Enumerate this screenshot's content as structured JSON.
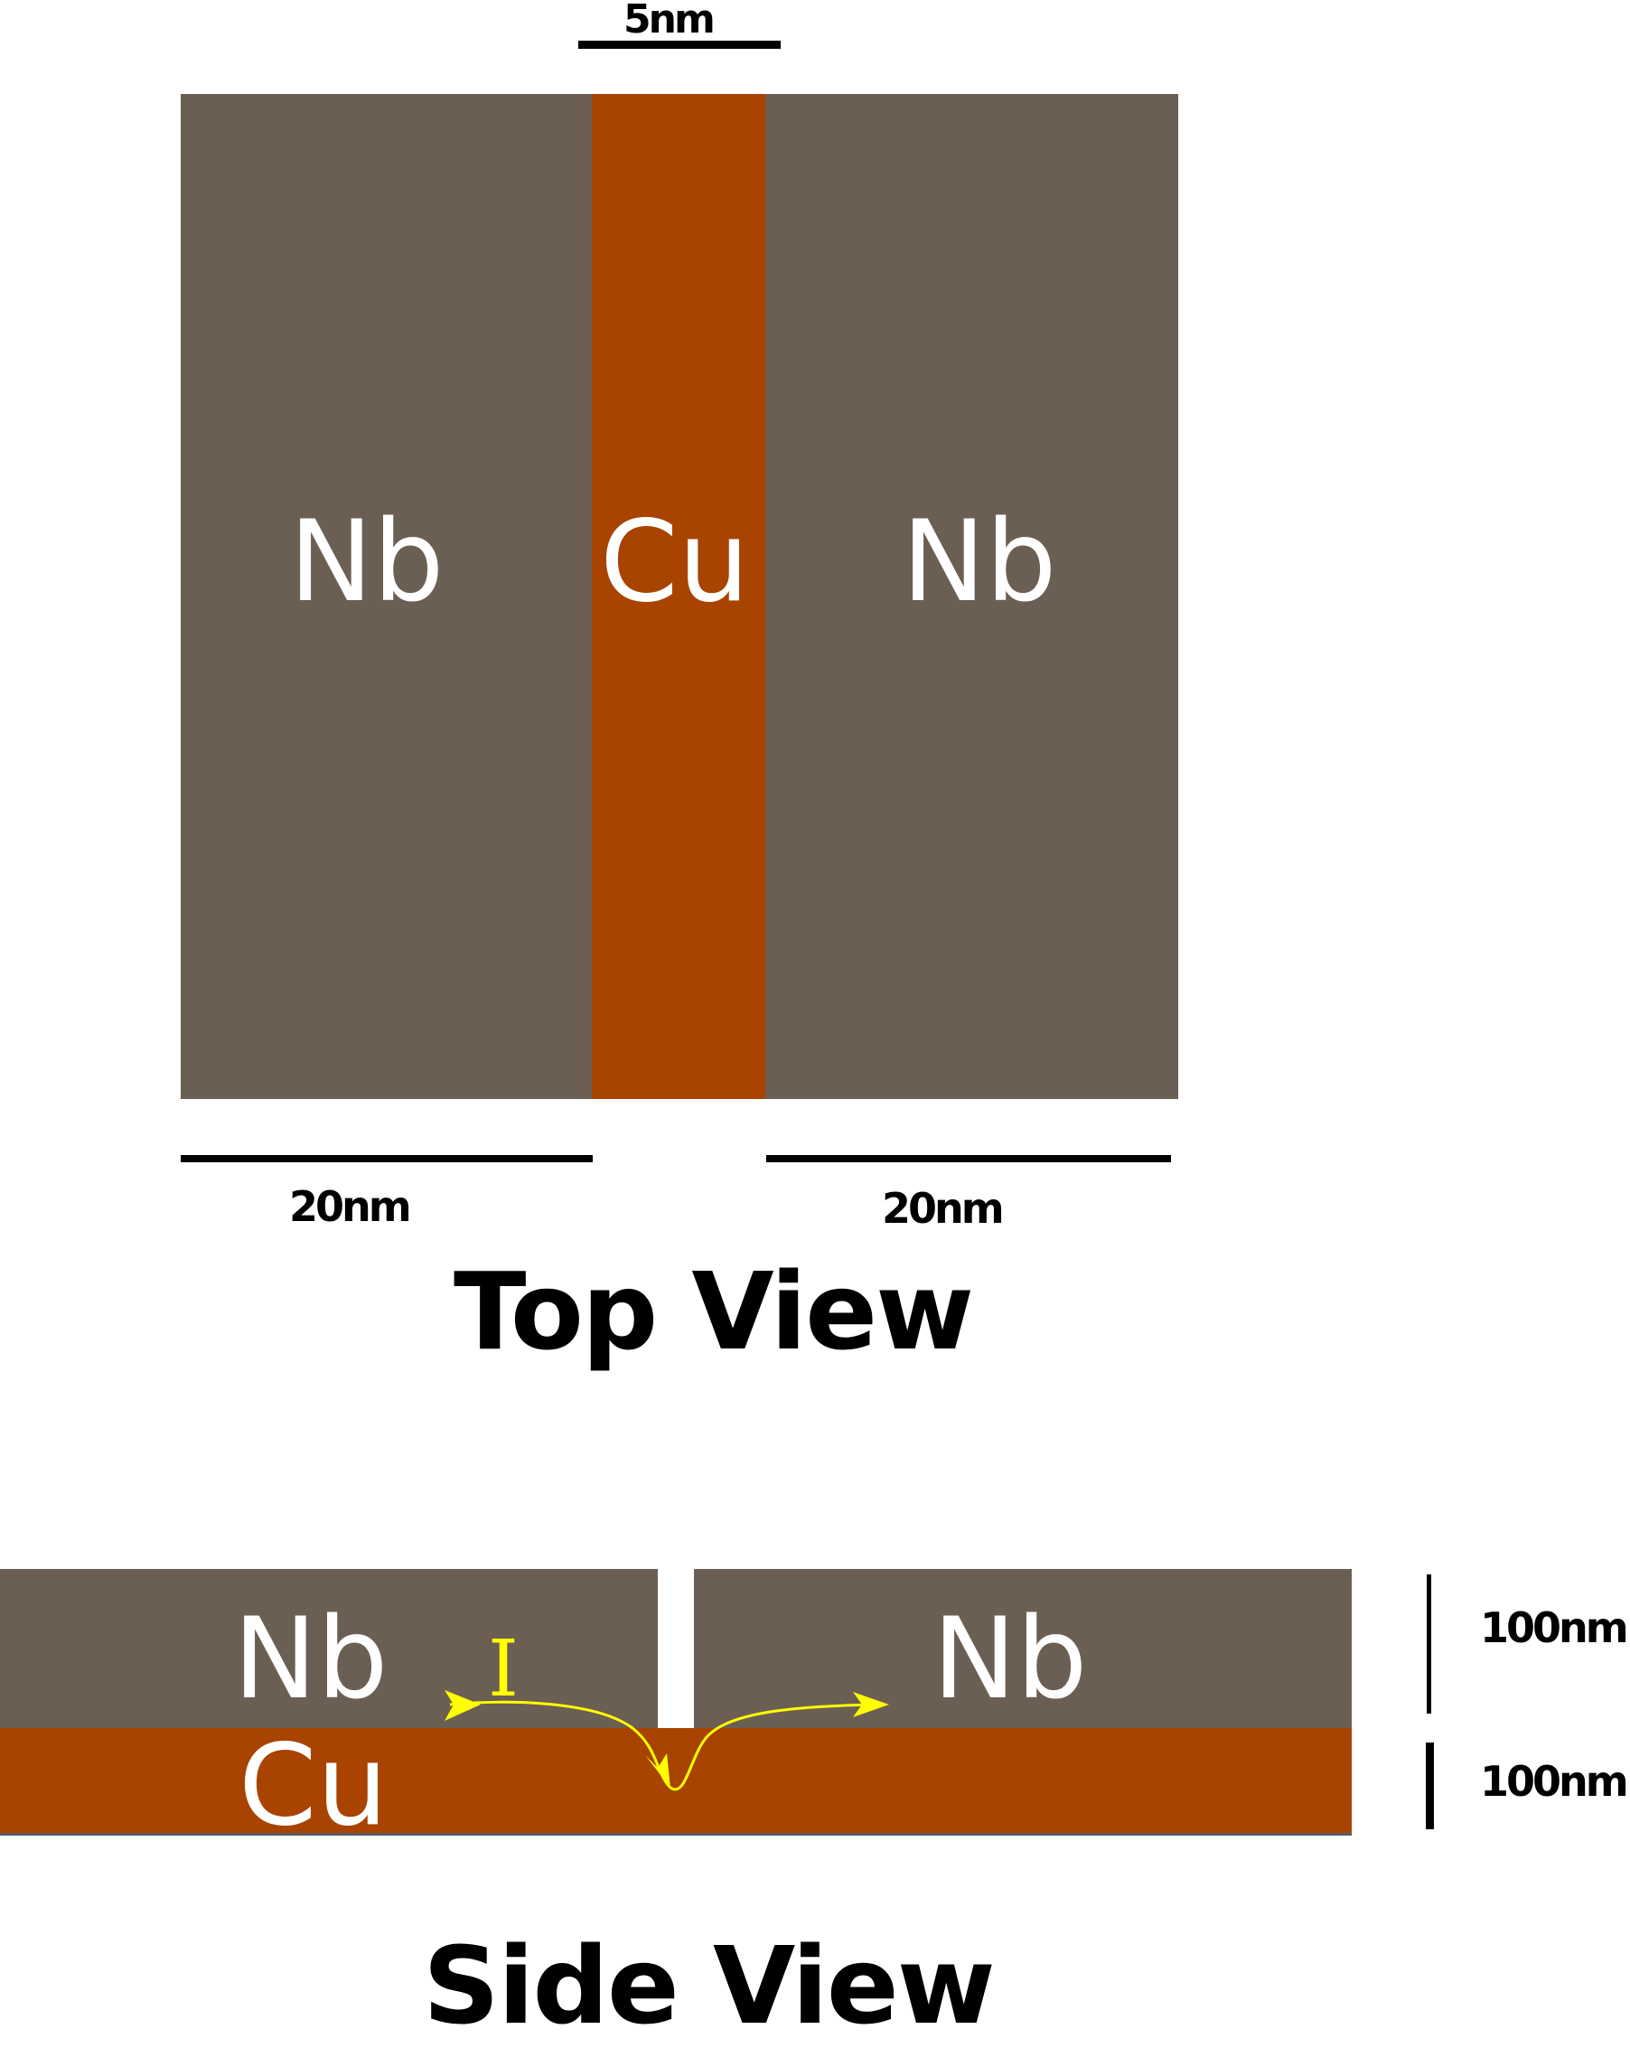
{
  "colors": {
    "nb": "#6b5e53",
    "cu": "#a84300",
    "current": "#ffff00",
    "background": "#ffffff"
  },
  "top_view": {
    "title": "Top View",
    "gap_dimension": "5nm",
    "left_dimension": "20nm",
    "right_dimension": "20nm",
    "left_label": "Nb",
    "center_label": "Cu",
    "right_label": "Nb"
  },
  "side_view": {
    "title": "Side View",
    "nb_left_label": "Nb",
    "nb_right_label": "Nb",
    "cu_label": "Cu",
    "current_label": "I",
    "nb_thickness": "100nm",
    "cu_thickness": "100nm"
  }
}
